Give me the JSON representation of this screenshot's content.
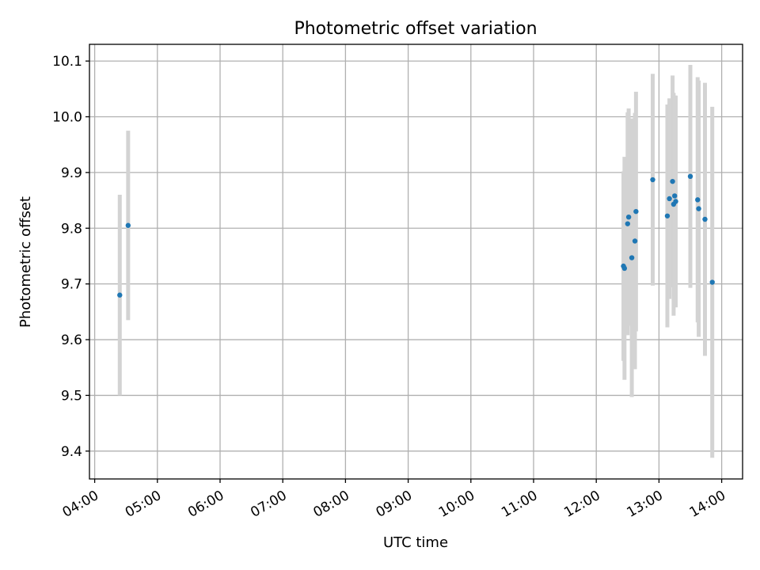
{
  "chart_data": {
    "type": "scatter",
    "title": "Photometric offset variation",
    "xlabel": "UTC time",
    "ylabel": "Photometric offset",
    "x_ticks": [
      "04:00",
      "05:00",
      "06:00",
      "07:00",
      "08:00",
      "09:00",
      "10:00",
      "11:00",
      "12:00",
      "13:00",
      "14:00"
    ],
    "y_ticks": [
      "9.4",
      "9.5",
      "9.6",
      "9.7",
      "9.8",
      "9.9",
      "10.0",
      "10.1"
    ],
    "x_range": [
      "03:55",
      "14:20"
    ],
    "ylim": [
      9.35,
      10.13
    ],
    "grid": true,
    "points": [
      {
        "time": "04:24",
        "y": 9.68,
        "err": 0.18
      },
      {
        "time": "04:32",
        "y": 9.805,
        "err": 0.17
      },
      {
        "time": "12:26",
        "y": 9.732,
        "err": 0.17
      },
      {
        "time": "12:27",
        "y": 9.728,
        "err": 0.2
      },
      {
        "time": "12:30",
        "y": 9.808,
        "err": 0.2
      },
      {
        "time": "12:31",
        "y": 9.82,
        "err": 0.195
      },
      {
        "time": "12:34",
        "y": 9.747,
        "err": 0.25
      },
      {
        "time": "12:37",
        "y": 9.777,
        "err": 0.23
      },
      {
        "time": "12:38",
        "y": 9.83,
        "err": 0.215
      },
      {
        "time": "12:54",
        "y": 9.887,
        "err": 0.19
      },
      {
        "time": "13:08",
        "y": 9.822,
        "err": 0.2
      },
      {
        "time": "13:10",
        "y": 9.853,
        "err": 0.18
      },
      {
        "time": "13:13",
        "y": 9.884,
        "err": 0.19
      },
      {
        "time": "13:14",
        "y": 9.843,
        "err": 0.2
      },
      {
        "time": "13:15",
        "y": 9.858,
        "err": 0.18
      },
      {
        "time": "13:16",
        "y": 9.848,
        "err": 0.19
      },
      {
        "time": "13:30",
        "y": 9.893,
        "err": 0.2
      },
      {
        "time": "13:37",
        "y": 9.851,
        "err": 0.22
      },
      {
        "time": "13:38",
        "y": 9.835,
        "err": 0.23
      },
      {
        "time": "13:44",
        "y": 9.816,
        "err": 0.245
      },
      {
        "time": "13:51",
        "y": 9.703,
        "err": 0.315
      }
    ],
    "marker_color": "#1f77b4",
    "errorbar_color": "#d3d3d3",
    "grid_color": "#b0b0b0"
  }
}
